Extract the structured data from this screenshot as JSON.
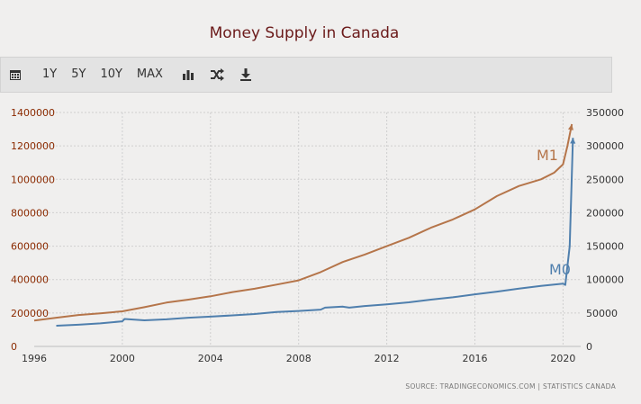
{
  "title": "Money Supply in Canada",
  "toolbar": {
    "buttons": [
      "1Y",
      "5Y",
      "10Y",
      "MAX"
    ],
    "icons": [
      "calendar-icon",
      "bar-chart-icon",
      "shuffle-icon",
      "download-icon"
    ]
  },
  "source": "SOURCE:  TRADINGECONOMICS.COM  |  STATISTICS CANADA",
  "colors": {
    "m1": "#b5754a",
    "m0": "#4f7fad",
    "title": "#6b1a1a",
    "left_axis": "#8b2a00",
    "right_axis": "#333333"
  },
  "chart_data": {
    "type": "line",
    "x_ticks": [
      "1996",
      "2000",
      "2004",
      "2008",
      "2012",
      "2016",
      "2020"
    ],
    "left_axis": {
      "ticks": [
        "0",
        "200000",
        "400000",
        "600000",
        "800000",
        "1000000",
        "1200000",
        "1400000"
      ],
      "ylim": [
        0,
        1400000
      ]
    },
    "right_axis": {
      "ticks": [
        "0",
        "50000",
        "100000",
        "150000",
        "200000",
        "250000",
        "300000",
        "350000"
      ],
      "ylim": [
        0,
        350000
      ]
    },
    "xlim": [
      1996,
      2020.8
    ],
    "grid": true,
    "series": [
      {
        "name": "M1",
        "axis": "left",
        "x": [
          1996,
          1997,
          1998,
          1999,
          2000,
          2001,
          2002,
          2003,
          2004,
          2005,
          2006,
          2007,
          2008,
          2009,
          2010,
          2011,
          2012,
          2013,
          2014,
          2015,
          2016,
          2017,
          2018,
          2019,
          2019.6,
          2020,
          2020.2,
          2020.4
        ],
        "values": [
          155000,
          172000,
          188000,
          198000,
          210000,
          235000,
          262000,
          280000,
          300000,
          325000,
          345000,
          370000,
          395000,
          445000,
          505000,
          550000,
          600000,
          650000,
          710000,
          760000,
          820000,
          900000,
          960000,
          1000000,
          1040000,
          1090000,
          1200000,
          1330000
        ]
      },
      {
        "name": "M0",
        "axis": "right",
        "x": [
          1997,
          1998,
          1999,
          2000,
          2000.1,
          2001,
          2002,
          2003,
          2004,
          2005,
          2006,
          2007,
          2008,
          2009,
          2009.2,
          2010,
          2010.3,
          2011,
          2012,
          2013,
          2014,
          2015,
          2016,
          2017,
          2018,
          2019,
          2020,
          2020.1,
          2020.3,
          2020.45
        ],
        "values": [
          31000,
          32500,
          34500,
          37500,
          41000,
          39000,
          40500,
          43000,
          44500,
          46500,
          48500,
          51500,
          53000,
          55000,
          58000,
          59500,
          58000,
          60500,
          63000,
          66000,
          70000,
          73500,
          78000,
          82000,
          86500,
          90500,
          94000,
          92000,
          150000,
          312000
        ]
      }
    ],
    "series_labels": [
      "M1",
      "M0"
    ]
  }
}
